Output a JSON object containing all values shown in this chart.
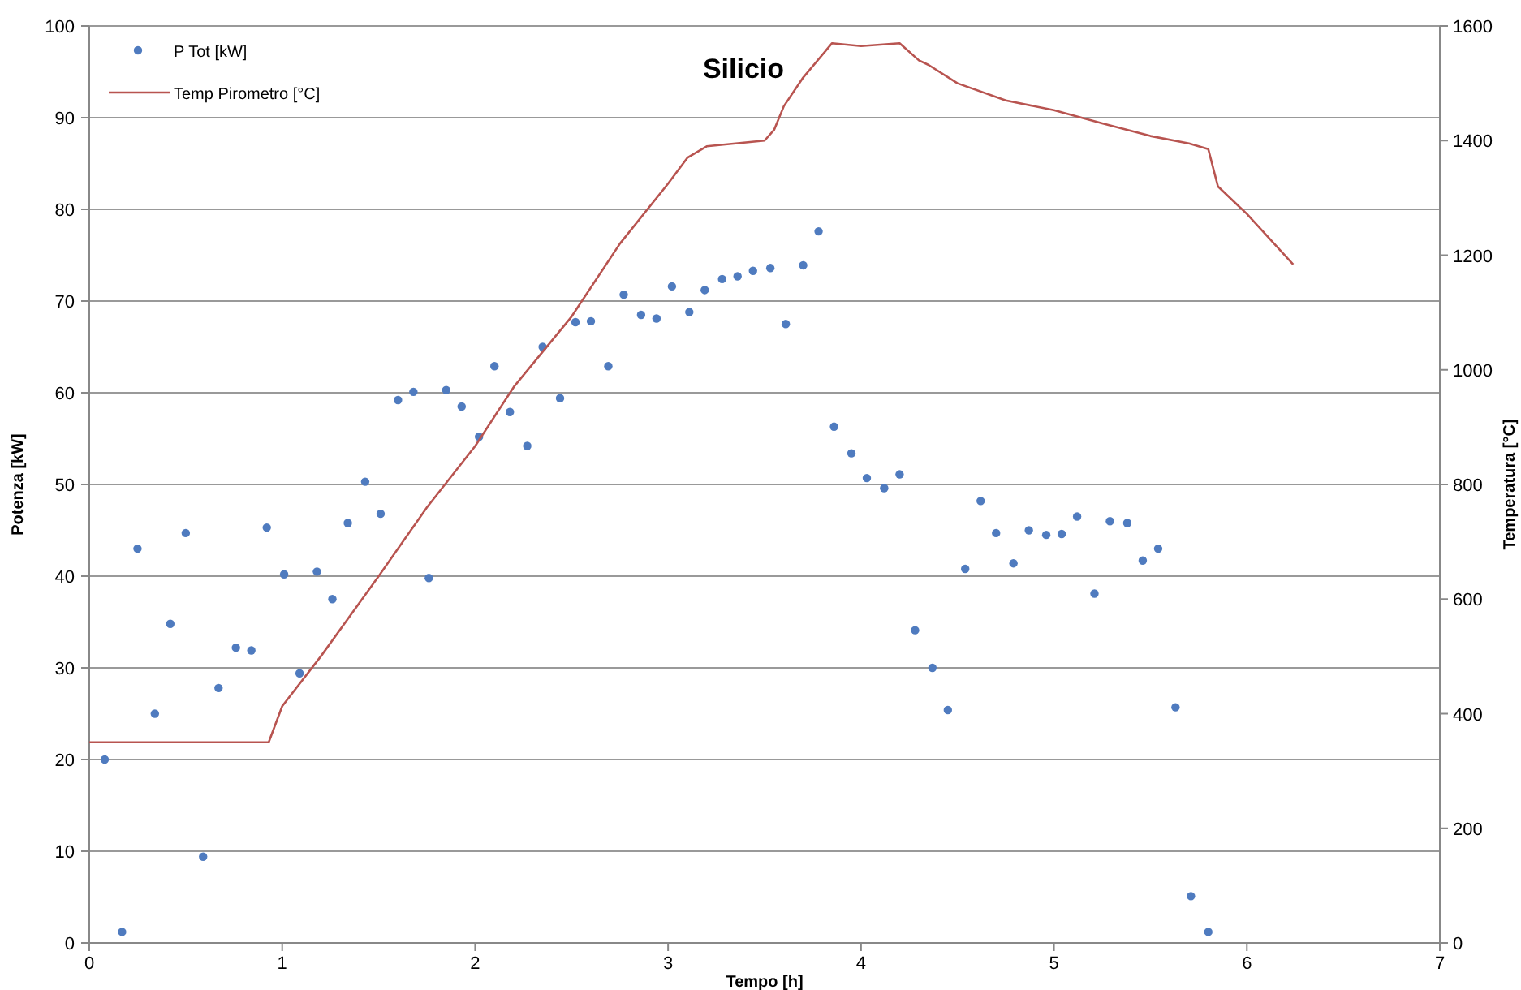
{
  "chart_data": {
    "type": "scatter",
    "title": "Silicio",
    "xlabel": "Tempo [h]",
    "ylabel": "Potenza [kW]",
    "y2label": "Temperatura [°C]",
    "xlim": [
      0,
      7
    ],
    "xticks": [
      0,
      1,
      2,
      3,
      4,
      5,
      6,
      7
    ],
    "ylim": [
      0,
      100
    ],
    "yticks": [
      0,
      10,
      20,
      30,
      40,
      50,
      60,
      70,
      80,
      90,
      100
    ],
    "y2lim": [
      0,
      1600
    ],
    "y2ticks": [
      0,
      200,
      400,
      600,
      800,
      1000,
      1200,
      1400,
      1600
    ],
    "grid": "y",
    "legend": "top left",
    "marker": "circle",
    "series": [
      {
        "name": "P Tot [kW]",
        "color": "#4f7bbf",
        "x": [
          0.08,
          0.17,
          0.25,
          0.34,
          0.42,
          0.5,
          0.59,
          0.67,
          0.76,
          0.84,
          0.92,
          1.01,
          1.09,
          1.18,
          1.26,
          1.34,
          1.43,
          1.51,
          1.6,
          1.68,
          1.76,
          1.85,
          1.93,
          2.02,
          2.1,
          2.18,
          2.27,
          2.35,
          2.44,
          2.52,
          2.6,
          2.69,
          2.77,
          2.86,
          2.94,
          3.02,
          3.11,
          3.19,
          3.28,
          3.36,
          3.44,
          3.53,
          3.61,
          3.7,
          3.78,
          3.86,
          3.95,
          4.03,
          4.12,
          4.2,
          4.28,
          4.37,
          4.45,
          4.54,
          4.62,
          4.7,
          4.79,
          4.87,
          4.96,
          5.04,
          5.12,
          5.21,
          5.29,
          5.38,
          5.46,
          5.54,
          5.63,
          5.71,
          5.8
        ],
        "values": [
          20,
          1.2,
          43,
          25,
          34.8,
          44.7,
          9.4,
          27.8,
          32.2,
          31.9,
          45.3,
          40.2,
          29.4,
          40.5,
          37.5,
          45.8,
          50.3,
          46.8,
          59.2,
          60.1,
          39.8,
          60.3,
          58.5,
          55.2,
          62.9,
          57.9,
          54.2,
          65,
          59.4,
          67.7,
          67.8,
          62.9,
          70.7,
          68.5,
          68.1,
          71.6,
          68.8,
          71.2,
          72.4,
          72.7,
          73.3,
          73.6,
          67.5,
          73.9,
          77.6,
          56.3,
          53.4,
          50.7,
          49.6,
          51.1,
          34.1,
          30,
          25.4,
          40.8,
          48.2,
          44.7,
          41.4,
          45,
          44.5,
          44.6,
          46.5,
          38.1,
          46,
          45.8,
          41.7,
          43,
          25.7,
          5.1,
          1.2
        ]
      },
      {
        "name": "Temp Pirometro [°C]",
        "type": "line",
        "axis": "y2",
        "color": "#b85450",
        "marker": "none",
        "x": [
          0,
          0.93,
          1.0,
          1.2,
          1.5,
          1.75,
          2.0,
          2.2,
          2.5,
          2.75,
          3.0,
          3.1,
          3.2,
          3.5,
          3.55,
          3.6,
          3.7,
          3.85,
          4.0,
          4.2,
          4.3,
          4.35,
          4.5,
          4.75,
          5.0,
          5.25,
          5.5,
          5.7,
          5.8,
          5.85,
          6.0,
          6.24
        ],
        "values": [
          350,
          350,
          413,
          500,
          640,
          760,
          867,
          970,
          1093,
          1220,
          1325,
          1370,
          1390,
          1400,
          1419,
          1460,
          1510,
          1570,
          1565,
          1570,
          1540,
          1532,
          1500,
          1470,
          1453,
          1430,
          1408,
          1395,
          1385,
          1320,
          1272,
          1184
        ]
      }
    ]
  }
}
